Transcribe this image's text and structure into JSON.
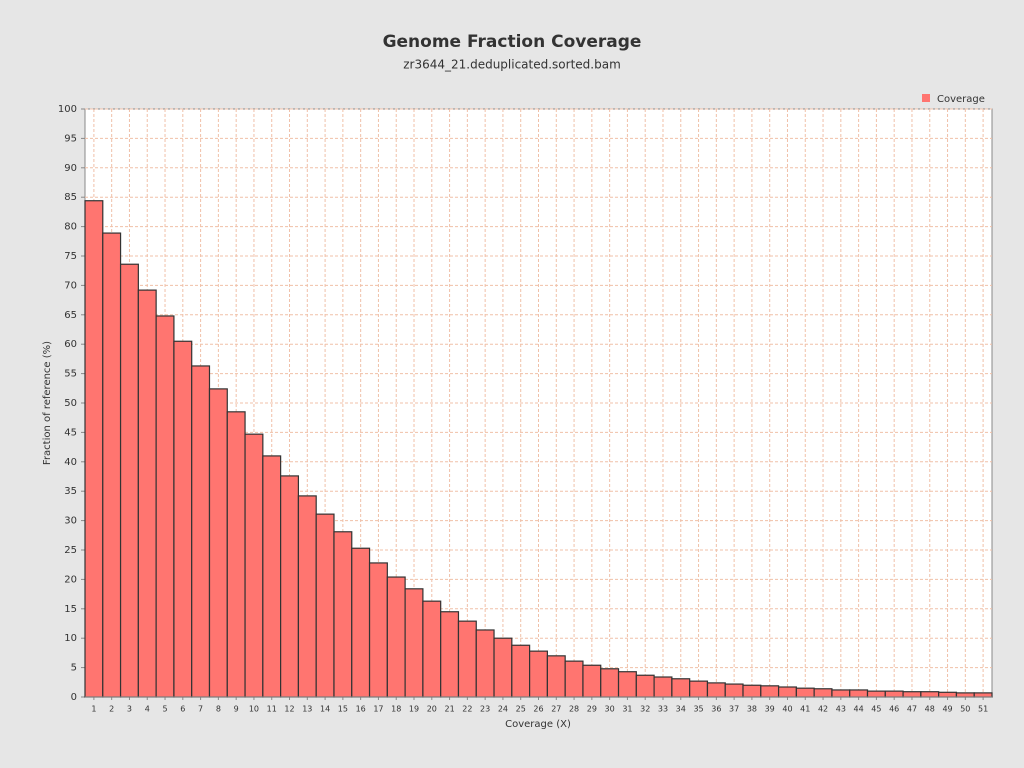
{
  "chart_data": {
    "type": "bar",
    "title": "Genome Fraction Coverage",
    "subtitle": "zr3644_21.deduplicated.sorted.bam",
    "x_label": "Coverage (X)",
    "y_label": "Fraction of reference (%)",
    "categories": [
      1,
      2,
      3,
      4,
      5,
      6,
      7,
      8,
      9,
      10,
      11,
      12,
      13,
      14,
      15,
      16,
      17,
      18,
      19,
      20,
      21,
      22,
      23,
      24,
      25,
      26,
      27,
      28,
      29,
      30,
      31,
      32,
      33,
      34,
      35,
      36,
      37,
      38,
      39,
      40,
      41,
      42,
      43,
      44,
      45,
      46,
      47,
      48,
      49,
      50,
      51
    ],
    "series": [
      {
        "name": "Coverage",
        "color": "#ff7570",
        "values": [
          84.4,
          78.9,
          73.6,
          69.2,
          64.8,
          60.5,
          56.3,
          52.4,
          48.5,
          44.7,
          41.0,
          37.6,
          34.2,
          31.1,
          28.1,
          25.3,
          22.8,
          20.4,
          18.4,
          16.3,
          14.5,
          12.9,
          11.4,
          10.0,
          8.8,
          7.8,
          7.0,
          6.1,
          5.4,
          4.8,
          4.3,
          3.7,
          3.4,
          3.1,
          2.7,
          2.4,
          2.2,
          2.0,
          1.9,
          1.7,
          1.5,
          1.4,
          1.2,
          1.2,
          1.0,
          1.0,
          0.9,
          0.9,
          0.8,
          0.7,
          0.7
        ]
      }
    ],
    "ylim": [
      0,
      100
    ],
    "yticks": [
      0,
      5,
      10,
      15,
      20,
      25,
      30,
      35,
      40,
      45,
      50,
      55,
      60,
      65,
      70,
      75,
      80,
      85,
      90,
      95,
      100
    ],
    "grid": true,
    "legend": "top-right"
  }
}
